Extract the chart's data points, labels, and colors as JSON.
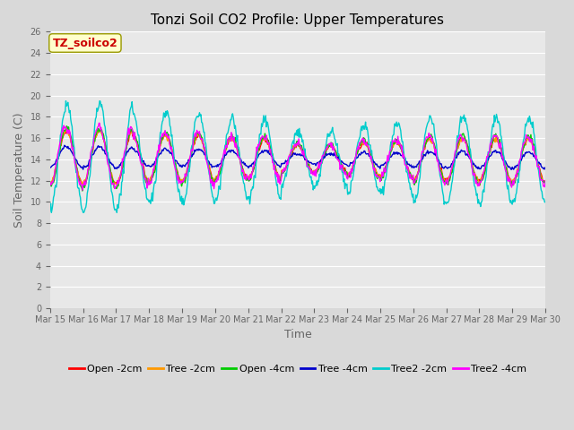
{
  "title": "Tonzi Soil CO2 Profile: Upper Temperatures",
  "xlabel": "Time",
  "ylabel": "Soil Temperature (C)",
  "ylim": [
    0,
    26
  ],
  "yticks": [
    0,
    2,
    4,
    6,
    8,
    10,
    12,
    14,
    16,
    18,
    20,
    22,
    24,
    26
  ],
  "annotation_text": "TZ_soilco2",
  "annotation_color": "#cc0000",
  "annotation_box_facecolor": "#ffffcc",
  "annotation_box_edgecolor": "#999900",
  "fig_facecolor": "#d9d9d9",
  "axes_facecolor": "#e8e8e8",
  "grid_color": "#ffffff",
  "tick_color": "#666666",
  "series_colors": [
    "#ff0000",
    "#ff9900",
    "#00cc00",
    "#0000cc",
    "#00cccc",
    "#ff00ff"
  ],
  "series_labels": [
    "Open -2cm",
    "Tree -2cm",
    "Open -4cm",
    "Tree -4cm",
    "Tree2 -2cm",
    "Tree2 -4cm"
  ],
  "n_days": 15,
  "start_day": 15,
  "lw": 1.0,
  "title_fontsize": 11,
  "legend_fontsize": 8,
  "tick_fontsize": 7,
  "label_fontsize": 9,
  "figsize": [
    6.4,
    4.8
  ],
  "dpi": 100
}
